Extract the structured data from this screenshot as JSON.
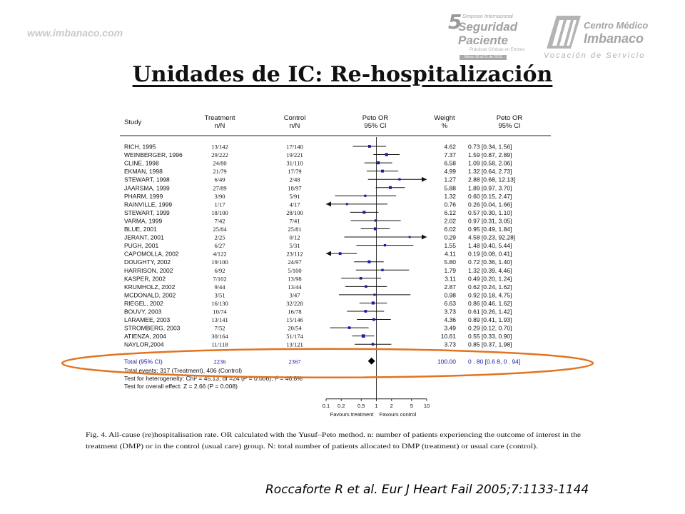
{
  "slide": {
    "watermark": "www.imbanaco.com",
    "title": "Unidades de IC: Re-hospitalización",
    "citation": "Roccaforte R et al. Eur J Heart Fail 2005;7:1133-1144",
    "logo_symposium": {
      "number": "5",
      "line1": "Simposio Internacional",
      "line2": "Seguridad",
      "line3": "Paciente",
      "subtitle": "Prácticas Clínicas en Errores",
      "date": "Marzo 19 al 21 de 2013",
      "icon": "symposium-logo-icon"
    },
    "logo_centro": {
      "name1": "Centro Médico",
      "name2": "Imbanaco",
      "tagline": "Vocación de Servicio",
      "icon": "imbanaco-building-icon"
    }
  },
  "chart_data": {
    "type": "forest",
    "headers": {
      "study": "Study",
      "treatment": [
        "Treatment",
        "n/N"
      ],
      "control": [
        "Control",
        "n/N"
      ],
      "or": [
        "Peto OR",
        "95% CI"
      ],
      "weight": [
        "Weight",
        "%"
      ],
      "or_ci": [
        "Peto OR",
        "95% CI"
      ]
    },
    "studies": [
      {
        "study": "RICH, 1995",
        "treatment": "13/142",
        "control": "17/140",
        "weight": "4.62",
        "ci_text": "0.73 [0.34, 1.56]",
        "or": 0.73,
        "lo": 0.34,
        "hi": 1.56
      },
      {
        "study": "WEINBERGER, 1996",
        "treatment": "29/222",
        "control": "19/221",
        "weight": "7.37",
        "ci_text": "1.59 [0.87, 2.89]",
        "or": 1.59,
        "lo": 0.87,
        "hi": 2.89
      },
      {
        "study": "CLINE, 1998",
        "treatment": "24/80",
        "control": "31/110",
        "weight": "6.58",
        "ci_text": "1.09 [0.58, 2.06]",
        "or": 1.09,
        "lo": 0.58,
        "hi": 2.06
      },
      {
        "study": "EKMAN, 1998",
        "treatment": "21/79",
        "control": "17/79",
        "weight": "4.99",
        "ci_text": "1.32 [0.64, 2.73]",
        "or": 1.32,
        "lo": 0.64,
        "hi": 2.73
      },
      {
        "study": "STEWART, 1998",
        "treatment": "6/49",
        "control": "2/48",
        "weight": "1.27",
        "ci_text": "2.88 [0.68, 12.13]",
        "or": 2.88,
        "lo": 0.68,
        "hi": 12.13
      },
      {
        "study": "JAARSMA, 1999",
        "treatment": "27/89",
        "control": "18/97",
        "weight": "5.88",
        "ci_text": "1.89 [0.97, 3.70]",
        "or": 1.89,
        "lo": 0.97,
        "hi": 3.7
      },
      {
        "study": "PHARM, 1999",
        "treatment": "3/90",
        "control": "5/91",
        "weight": "1.32",
        "ci_text": "0.60 [0.15, 2.47]",
        "or": 0.6,
        "lo": 0.15,
        "hi": 2.47
      },
      {
        "study": "RAINVILLE, 1999",
        "treatment": "1/17",
        "control": "4/17",
        "weight": "0.76",
        "ci_text": "0.26 [0.04, 1.66]",
        "or": 0.26,
        "lo": 0.04,
        "hi": 1.66
      },
      {
        "study": "STEWART, 1999",
        "treatment": "18/100",
        "control": "28/100",
        "weight": "6.12",
        "ci_text": "0.57 [0.30, 1.10]",
        "or": 0.57,
        "lo": 0.3,
        "hi": 1.1
      },
      {
        "study": "VARMA, 1999",
        "treatment": "7/42",
        "control": "7/41",
        "weight": "2.02",
        "ci_text": "0.97 [0.31, 3.05]",
        "or": 0.97,
        "lo": 0.31,
        "hi": 3.05
      },
      {
        "study": "BLUE, 2001",
        "treatment": "25/84",
        "control": "25/81",
        "weight": "6.02",
        "ci_text": "0.95 [0.49, 1.84]",
        "or": 0.95,
        "lo": 0.49,
        "hi": 1.84
      },
      {
        "study": "JERANT, 2001",
        "treatment": "2/25",
        "control": "0/12",
        "weight": "0.29",
        "ci_text": "4.58 [0.23, 92.28]",
        "or": 4.58,
        "lo": 0.23,
        "hi": 92.28
      },
      {
        "study": "PUGH, 2001",
        "treatment": "6/27",
        "control": "5/31",
        "weight": "1.55",
        "ci_text": "1.48 [0.40, 5.44]",
        "or": 1.48,
        "lo": 0.4,
        "hi": 5.44
      },
      {
        "study": "CAPOMOLLA, 2002",
        "treatment": "4/122",
        "control": "23/112",
        "weight": "4.11",
        "ci_text": "0.19 [0.08, 0.41]",
        "or": 0.19,
        "lo": 0.08,
        "hi": 0.41
      },
      {
        "study": "DOUGHTY, 2002",
        "treatment": "19/100",
        "control": "24/97",
        "weight": "5.80",
        "ci_text": "0.72 [0.36, 1.40]",
        "or": 0.72,
        "lo": 0.36,
        "hi": 1.4
      },
      {
        "study": "HARRISON, 2002",
        "treatment": "6/92",
        "control": "5/100",
        "weight": "1.79",
        "ci_text": "1.32 [0.39, 4.46]",
        "or": 1.32,
        "lo": 0.39,
        "hi": 4.46
      },
      {
        "study": "KASPER, 2002",
        "treatment": "7/102",
        "control": "13/98",
        "weight": "3.11",
        "ci_text": "0.49 [0.20, 1.24]",
        "or": 0.49,
        "lo": 0.2,
        "hi": 1.24
      },
      {
        "study": "KRUMHOLZ, 2002",
        "treatment": "9/44",
        "control": "13/44",
        "weight": "2.87",
        "ci_text": "0.62 [0.24, 1.62]",
        "or": 0.62,
        "lo": 0.24,
        "hi": 1.62
      },
      {
        "study": "MCDONALD, 2002",
        "treatment": "3/51",
        "control": "3/47",
        "weight": "0.98",
        "ci_text": "0.92 [0.18, 4.75]",
        "or": 0.92,
        "lo": 0.18,
        "hi": 4.75
      },
      {
        "study": "RIEGEL, 2002",
        "treatment": "16/130",
        "control": "32/228",
        "weight": "6.63",
        "ci_text": "0.86 [0.46, 1.62]",
        "or": 0.86,
        "lo": 0.46,
        "hi": 1.62
      },
      {
        "study": "BOUVY, 2003",
        "treatment": "10/74",
        "control": "16/78",
        "weight": "3.73",
        "ci_text": "0.61 [0.26, 1.42]",
        "or": 0.61,
        "lo": 0.26,
        "hi": 1.42
      },
      {
        "study": "LARAMEE, 2003",
        "treatment": "13/141",
        "control": "15/146",
        "weight": "4.36",
        "ci_text": "0.89 [0.41, 1.93]",
        "or": 0.89,
        "lo": 0.41,
        "hi": 1.93
      },
      {
        "study": "STROMBERG, 2003",
        "treatment": "7/52",
        "control": "20/54",
        "weight": "3.49",
        "ci_text": "0.29 [0.12, 0.70]",
        "or": 0.29,
        "lo": 0.12,
        "hi": 0.7
      },
      {
        "study": "ATIENZA, 2004",
        "treatment": "30/164",
        "control": "51/174",
        "weight": "10.61",
        "ci_text": "0.55 [0.33, 0.90]",
        "or": 0.55,
        "lo": 0.33,
        "hi": 0.9
      },
      {
        "study": "NAYLOR,2004",
        "treatment": "11/118",
        "control": "13/121",
        "weight": "3.73",
        "ci_text": "0.85 [0.37, 1.98]",
        "or": 0.85,
        "lo": 0.37,
        "hi": 1.98
      }
    ],
    "total": {
      "label": "Total (95% CI)",
      "treatment": "2236",
      "control": "2367",
      "weight": "100.00",
      "ci_text": "0 . 80 [0.6 8, 0 . 94]",
      "or": 0.8,
      "lo": 0.68,
      "hi": 0.94
    },
    "footer_lines": [
      "Total events: 317 (Treatment), 406 (Control)",
      "Test for heterogeneity: Chi² = 45.13, df =24 (P = 0.006), I² = 46.8%",
      "Test for overall effect: Z = 2.66 (P = 0.008)"
    ],
    "x_axis": {
      "scale": "log",
      "ticks": [
        0.1,
        0.2,
        0.5,
        1,
        2,
        5,
        10
      ],
      "tick_labels": [
        "0.1",
        "0.2",
        "0.5",
        "1",
        "2",
        "5",
        "10"
      ],
      "xlim": [
        0.1,
        10
      ]
    },
    "favours_left": "Favours treatment",
    "favours_right": "Favours control",
    "caption": [
      "Fig. 4.  All-cause (re)hospitalisation rate.  OR calculated with the Yusuf–Peto method.  n: number of patients experiencing the outcome of interest in the",
      "treatment (DMP) or in the control (usual care) group.  N: total number of patients allocated to DMP (treatment) or usual care (control)."
    ],
    "highlight": "total-row",
    "colors": {
      "marker": "#1a1aa8",
      "ci_line": "#111111",
      "highlight_ring": "#e2731f",
      "reference_line": "#333333"
    }
  }
}
